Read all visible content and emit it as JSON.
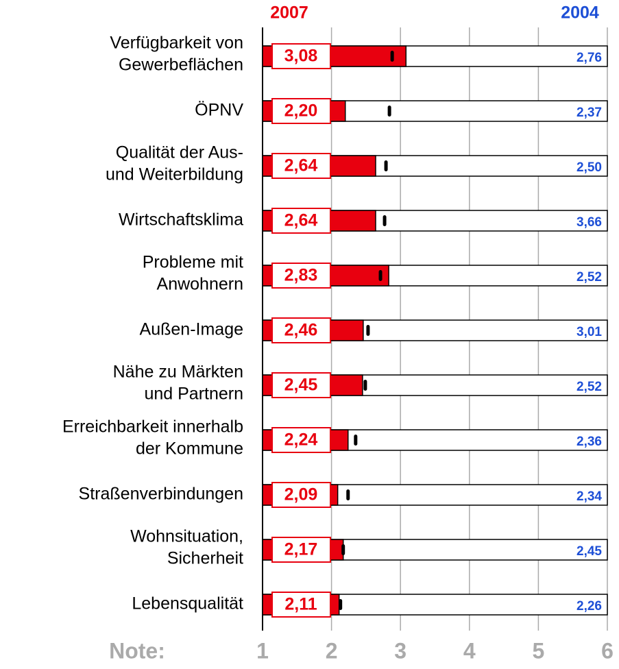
{
  "chart_data": {
    "type": "hbar",
    "xlabel": "Note:",
    "categories": [
      [
        "Verfügbarkeit von",
        "Gewerbeflächen"
      ],
      [
        "ÖPNV"
      ],
      [
        "Qualität der Aus-",
        "und Weiterbildung"
      ],
      [
        "Wirtschaftsklima"
      ],
      [
        "Probleme mit",
        "Anwohnern"
      ],
      [
        "Außen-Image"
      ],
      [
        "Nähe zu Märkten",
        "und Partnern"
      ],
      [
        "Erreichbarkeit innerhalb",
        "der Kommune"
      ],
      [
        "Straßenverbindungen"
      ],
      [
        "Wohnsituation,",
        "Sicherheit"
      ],
      [
        "Lebensqualität"
      ]
    ],
    "series": [
      {
        "name": "2007",
        "color": "#e8000f",
        "values": [
          3.08,
          2.2,
          2.64,
          2.64,
          2.83,
          2.46,
          2.45,
          2.24,
          2.09,
          2.17,
          2.11
        ],
        "value_labels": [
          "3,08",
          "2,20",
          "2,64",
          "2,64",
          "2,83",
          "2,46",
          "2,45",
          "2,24",
          "2,09",
          "2,17",
          "2,11"
        ]
      },
      {
        "name": "2004",
        "color": "#1d4fd6",
        "values": [
          2.76,
          2.37,
          2.5,
          3.66,
          2.52,
          3.01,
          2.52,
          2.36,
          2.34,
          2.45,
          2.26
        ],
        "value_labels": [
          "2,76",
          "2,37",
          "2,50",
          "3,66",
          "2,52",
          "3,01",
          "2,52",
          "2,36",
          "2,34",
          "2,45",
          "2,26"
        ]
      },
      {
        "color": "#000000",
        "values": [
          2.88,
          2.84,
          2.79,
          2.77,
          2.71,
          2.53,
          2.49,
          2.35,
          2.24,
          2.17,
          2.13
        ]
      }
    ],
    "xlim": [
      1,
      6
    ],
    "xticks": [
      1,
      2,
      3,
      4,
      5,
      6
    ],
    "grid": true
  }
}
